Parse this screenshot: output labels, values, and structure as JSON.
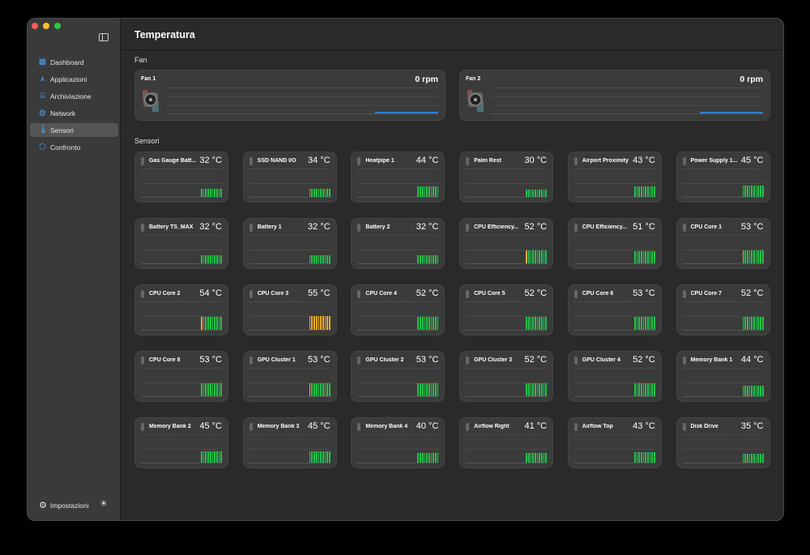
{
  "sidebar": {
    "items": [
      {
        "label": "Dashboard",
        "icon": "grid-icon",
        "glyph": "▦"
      },
      {
        "label": "Applicazioni",
        "icon": "app-store-icon",
        "glyph": "⩚"
      },
      {
        "label": "Archiviazione",
        "icon": "drive-icon",
        "glyph": "⌸"
      },
      {
        "label": "Network",
        "icon": "globe-icon",
        "glyph": "◍"
      },
      {
        "label": "Sensori",
        "icon": "thermometer-icon",
        "glyph": "🌡",
        "active": true
      },
      {
        "label": "Confronto",
        "icon": "cube-icon",
        "glyph": "⬡"
      }
    ],
    "settings_label": "Impostazioni"
  },
  "header": {
    "title": "Temperatura"
  },
  "fan_section": {
    "label": "Fan",
    "fans": [
      {
        "name": "Fan 1",
        "value": "0 rpm"
      },
      {
        "name": "Fan 2",
        "value": "0 rpm"
      }
    ]
  },
  "sensor_section": {
    "label": "Sensori",
    "sensors": [
      {
        "name": "Gas Gauge Batt...",
        "value": "32 °C",
        "temp": 32,
        "status": "normal"
      },
      {
        "name": "SSD NAND I/O",
        "value": "34 °C",
        "temp": 34,
        "status": "normal"
      },
      {
        "name": "Heatpipe 1",
        "value": "44 °C",
        "temp": 44,
        "status": "normal"
      },
      {
        "name": "Palm Rest",
        "value": "30 °C",
        "temp": 30,
        "status": "normal"
      },
      {
        "name": "Airport Proximity",
        "value": "43 °C",
        "temp": 43,
        "status": "normal"
      },
      {
        "name": "Power Supply 1...",
        "value": "45 °C",
        "temp": 45,
        "status": "normal"
      },
      {
        "name": "Battery TS_MAX",
        "value": "32 °C",
        "temp": 32,
        "status": "normal"
      },
      {
        "name": "Battery 1",
        "value": "32 °C",
        "temp": 32,
        "status": "normal"
      },
      {
        "name": "Battery 2",
        "value": "32 °C",
        "temp": 32,
        "status": "normal"
      },
      {
        "name": "CPU Efficiency...",
        "value": "52 °C",
        "temp": 52,
        "status": "warm-start"
      },
      {
        "name": "CPU Efficiency...",
        "value": "51 °C",
        "temp": 51,
        "status": "normal"
      },
      {
        "name": "CPU Core 1",
        "value": "53 °C",
        "temp": 53,
        "status": "warm-start"
      },
      {
        "name": "CPU Core 2",
        "value": "54 °C",
        "temp": 54,
        "status": "warm-start"
      },
      {
        "name": "CPU Core 3",
        "value": "55 °C",
        "temp": 55,
        "status": "warm"
      },
      {
        "name": "CPU Core 4",
        "value": "52 °C",
        "temp": 52,
        "status": "normal"
      },
      {
        "name": "CPU Core 5",
        "value": "52 °C",
        "temp": 52,
        "status": "normal"
      },
      {
        "name": "CPU Core 6",
        "value": "53 °C",
        "temp": 53,
        "status": "normal"
      },
      {
        "name": "CPU Core 7",
        "value": "52 °C",
        "temp": 52,
        "status": "normal"
      },
      {
        "name": "CPU Core 8",
        "value": "53 °C",
        "temp": 53,
        "status": "normal"
      },
      {
        "name": "GPU Cluster 1",
        "value": "53 °C",
        "temp": 53,
        "status": "warm-start"
      },
      {
        "name": "GPU Cluster 2",
        "value": "53 °C",
        "temp": 53,
        "status": "normal"
      },
      {
        "name": "GPU Cluster 3",
        "value": "52 °C",
        "temp": 52,
        "status": "normal"
      },
      {
        "name": "GPU Cluster 4",
        "value": "52 °C",
        "temp": 52,
        "status": "normal"
      },
      {
        "name": "Memory Bank 1",
        "value": "44 °C",
        "temp": 44,
        "status": "normal"
      },
      {
        "name": "Memory Bank 2",
        "value": "45 °C",
        "temp": 45,
        "status": "normal"
      },
      {
        "name": "Memory Bank 3",
        "value": "45 °C",
        "temp": 45,
        "status": "normal"
      },
      {
        "name": "Memory Bank 4",
        "value": "40 °C",
        "temp": 40,
        "status": "normal"
      },
      {
        "name": "Airflow Right",
        "value": "41 °C",
        "temp": 41,
        "status": "normal"
      },
      {
        "name": "Airflow Top",
        "value": "43 °C",
        "temp": 43,
        "status": "normal"
      },
      {
        "name": "Disk Drive",
        "value": "35 °C",
        "temp": 35,
        "status": "normal"
      }
    ]
  },
  "colors": {
    "normal": "#22c04a",
    "warm": "#e6a92a",
    "accent": "#4a9ff5",
    "fan_line": "#2f7fd0"
  }
}
